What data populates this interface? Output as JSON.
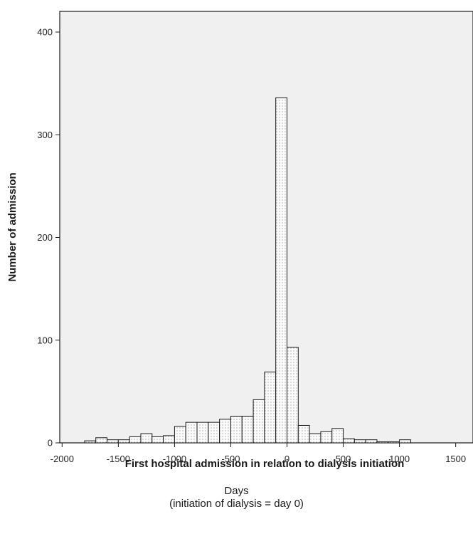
{
  "chart_data": {
    "type": "bar",
    "xlabel": "First hospital admission in relation to dialysis initiation",
    "ylabel": "Number of admission",
    "caption_line1": "Days",
    "caption_line2": "(initiation of dialysis = day 0)",
    "xlim": [
      -2200,
      1700
    ],
    "ylim": [
      0,
      420
    ],
    "x_ticks": [
      -2000,
      -1500,
      -1000,
      -500,
      0,
      500,
      1000,
      1500
    ],
    "y_ticks": [
      0,
      100,
      200,
      300,
      400
    ],
    "bin_width": 100,
    "bins": [
      {
        "x0": -1800,
        "value": 2
      },
      {
        "x0": -1700,
        "value": 5
      },
      {
        "x0": -1600,
        "value": 3
      },
      {
        "x0": -1500,
        "value": 3
      },
      {
        "x0": -1400,
        "value": 6
      },
      {
        "x0": -1300,
        "value": 9
      },
      {
        "x0": -1200,
        "value": 6
      },
      {
        "x0": -1100,
        "value": 7
      },
      {
        "x0": -1000,
        "value": 16
      },
      {
        "x0": -900,
        "value": 20
      },
      {
        "x0": -800,
        "value": 20
      },
      {
        "x0": -700,
        "value": 20
      },
      {
        "x0": -600,
        "value": 23
      },
      {
        "x0": -500,
        "value": 26
      },
      {
        "x0": -400,
        "value": 26
      },
      {
        "x0": -300,
        "value": 42
      },
      {
        "x0": -200,
        "value": 69
      },
      {
        "x0": -100,
        "value": 336
      },
      {
        "x0": 0,
        "value": 93
      },
      {
        "x0": 100,
        "value": 17
      },
      {
        "x0": 200,
        "value": 9
      },
      {
        "x0": 300,
        "value": 11
      },
      {
        "x0": 400,
        "value": 14
      },
      {
        "x0": 500,
        "value": 4
      },
      {
        "x0": 600,
        "value": 3
      },
      {
        "x0": 700,
        "value": 3
      },
      {
        "x0": 800,
        "value": 1
      },
      {
        "x0": 900,
        "value": 1
      },
      {
        "x0": 1000,
        "value": 3
      }
    ],
    "colors": {
      "plot_background": "#f0f0f0",
      "bar_fill": "#fafafa",
      "bar_dots": "#5a5a5a",
      "bar_edge": "#1a1a1a"
    }
  }
}
